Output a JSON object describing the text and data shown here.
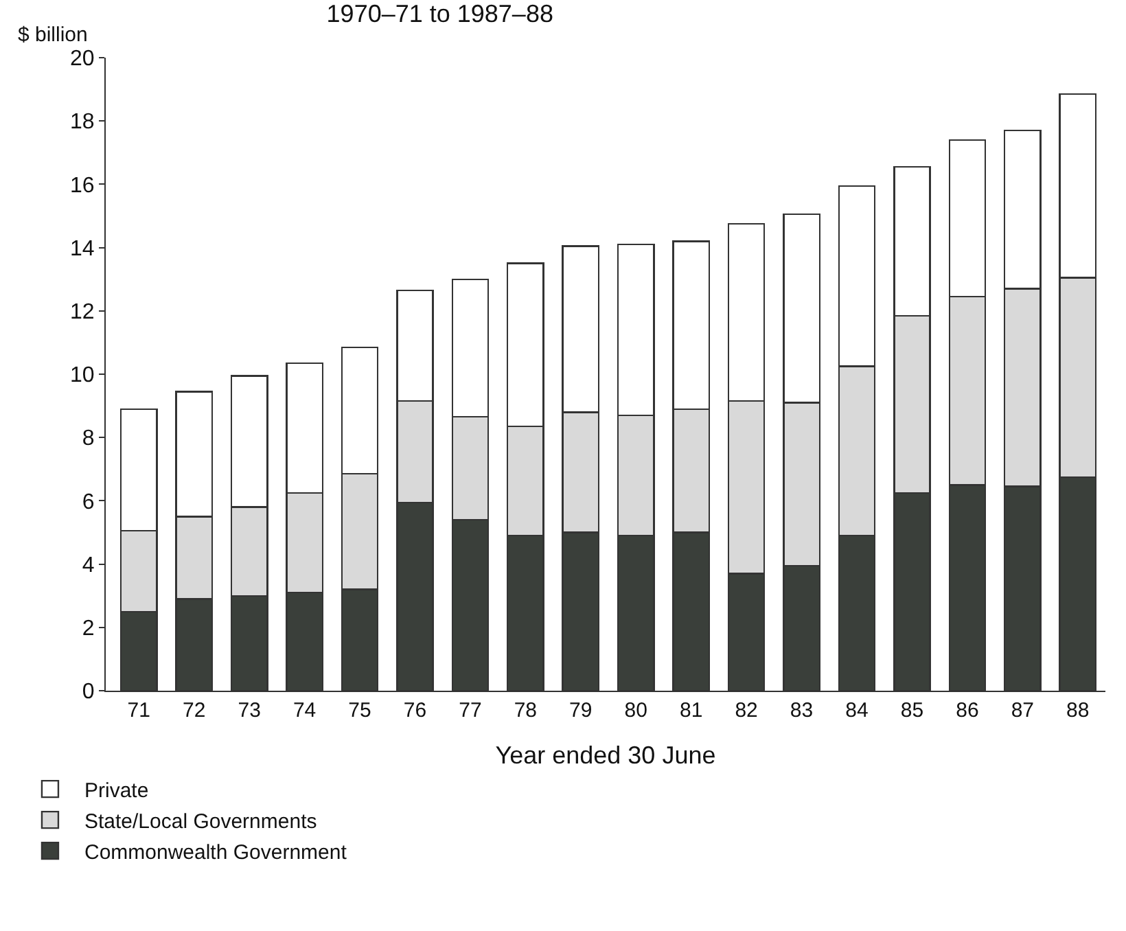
{
  "chart_data": {
    "type": "bar",
    "title": "1970–71 to 1987–88",
    "xlabel": "Year ended 30 June",
    "ylabel": "$ billion",
    "categories": [
      "71",
      "72",
      "73",
      "74",
      "75",
      "76",
      "77",
      "78",
      "79",
      "80",
      "81",
      "82",
      "83",
      "84",
      "85",
      "86",
      "87",
      "88"
    ],
    "stacked": true,
    "ylim": [
      0,
      20
    ],
    "yticks": [
      0,
      2,
      4,
      6,
      8,
      10,
      12,
      14,
      16,
      18,
      20
    ],
    "grid": false,
    "legend": "bottom left",
    "series": [
      {
        "name": "Commonwealth Government",
        "color": "#3a3f3a",
        "values": [
          2.5,
          2.9,
          3.0,
          3.1,
          3.2,
          5.95,
          5.4,
          4.9,
          5.0,
          4.9,
          5.0,
          3.7,
          3.95,
          4.9,
          6.25,
          6.5,
          6.45,
          6.75
        ]
      },
      {
        "name": "State/Local Governments",
        "color": "#d9d9d9",
        "values": [
          2.55,
          2.6,
          2.8,
          3.15,
          3.65,
          3.2,
          3.25,
          3.45,
          3.8,
          3.8,
          3.9,
          5.45,
          5.15,
          5.35,
          5.6,
          5.95,
          6.25,
          6.3
        ]
      },
      {
        "name": "Private",
        "color": "#ffffff",
        "values": [
          3.85,
          3.95,
          4.15,
          4.1,
          4.0,
          3.5,
          4.35,
          5.15,
          5.25,
          5.4,
          5.3,
          5.6,
          5.95,
          5.7,
          4.7,
          4.95,
          5.0,
          5.8
        ]
      }
    ]
  }
}
